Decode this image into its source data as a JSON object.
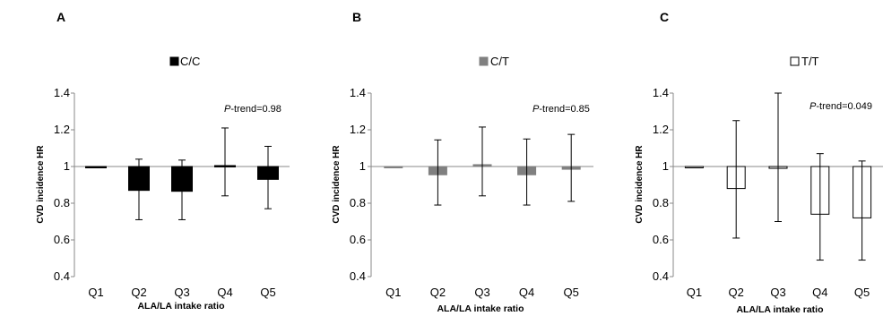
{
  "chart_data": [
    {
      "type": "bar",
      "panel_label": "A",
      "legend": "C/C",
      "fill": "#000000",
      "stroke": "#000000",
      "categories": [
        "Q1",
        "Q2",
        "Q3",
        "Q4",
        "Q5"
      ],
      "values": [
        1.0,
        0.87,
        0.865,
        1.005,
        0.93
      ],
      "error_low": [
        null,
        0.71,
        0.71,
        0.84,
        0.77
      ],
      "error_high": [
        null,
        1.04,
        1.035,
        1.21,
        1.11
      ],
      "baseline": 1,
      "ylim": [
        0.4,
        1.4
      ],
      "yticks": [
        "0.4",
        "0.6",
        "0.8",
        "1",
        "1.2",
        "1.4"
      ],
      "ylabel": "CVD incidence HR",
      "xlabel": "ALA/LA intake ratio",
      "annotation_italic": "P",
      "annotation_rest": "-trend=0.98"
    },
    {
      "type": "bar",
      "panel_label": "B",
      "legend": "C/T",
      "fill": "#808080",
      "stroke": "#808080",
      "categories": [
        "Q1",
        "Q2",
        "Q3",
        "Q4",
        "Q5"
      ],
      "values": [
        1.0,
        0.955,
        1.01,
        0.955,
        0.985
      ],
      "error_low": [
        null,
        0.79,
        0.84,
        0.79,
        0.81
      ],
      "error_high": [
        null,
        1.145,
        1.215,
        1.15,
        1.175
      ],
      "baseline": 1,
      "ylim": [
        0.4,
        1.4
      ],
      "yticks": [
        "0.4",
        "0.6",
        "0.8",
        "1",
        "1.2",
        "1.4"
      ],
      "ylabel": "CVD incidence HR",
      "xlabel": "ALA/LA intake ratio",
      "annotation_italic": "P",
      "annotation_rest": "-trend=0.85"
    },
    {
      "type": "bar",
      "panel_label": "C",
      "legend": "T/T",
      "fill": "#ffffff",
      "stroke": "#000000",
      "categories": [
        "Q1",
        "Q2",
        "Q3",
        "Q4",
        "Q5"
      ],
      "values": [
        1.0,
        0.88,
        0.99,
        0.74,
        0.72
      ],
      "error_low": [
        null,
        0.61,
        0.7,
        0.49,
        0.49
      ],
      "error_high": [
        null,
        1.25,
        1.4,
        1.07,
        1.03
      ],
      "baseline": 1,
      "ylim": [
        0.4,
        1.4
      ],
      "yticks": [
        "0.4",
        "0.6",
        "0.8",
        "1",
        "1.2",
        "1.4"
      ],
      "ylabel": "CVD incidence HR",
      "xlabel": "ALA/LA intake ratio",
      "annotation_italic": "P",
      "annotation_rest": "-trend=0.049"
    }
  ]
}
